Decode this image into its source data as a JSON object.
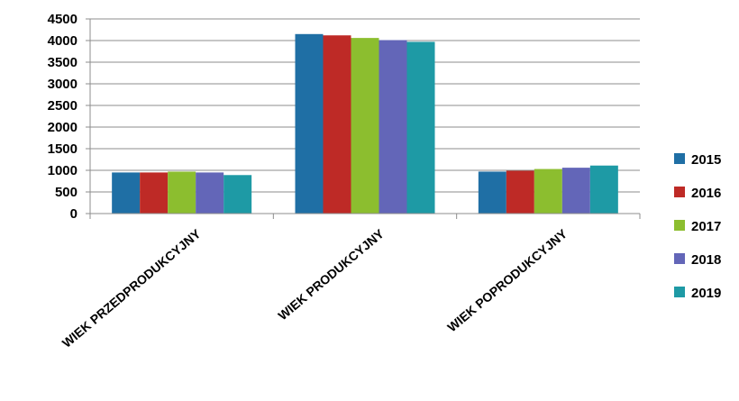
{
  "chart_data": {
    "type": "bar",
    "title": "",
    "xlabel": "",
    "ylabel": "",
    "categories": [
      "WIEK PRZEDPRODUKCYJNY",
      "WIEK PRODUKCYJNY",
      "WIEK POPRODUKCYJNY"
    ],
    "series": [
      {
        "name": "2015",
        "color": "#1f6fa5",
        "values": [
          950,
          4150,
          970
        ]
      },
      {
        "name": "2016",
        "color": "#be2a26",
        "values": [
          950,
          4120,
          990
        ]
      },
      {
        "name": "2017",
        "color": "#8cbe2f",
        "values": [
          970,
          4060,
          1030
        ]
      },
      {
        "name": "2018",
        "color": "#6366b8",
        "values": [
          950,
          4010,
          1060
        ]
      },
      {
        "name": "2019",
        "color": "#1e9aa5",
        "values": [
          890,
          3970,
          1110
        ]
      }
    ],
    "ylim": [
      0,
      4500
    ],
    "yticks": [
      0,
      500,
      1000,
      1500,
      2000,
      2500,
      3000,
      3500,
      4000,
      4500
    ],
    "grid": true,
    "legend_position": "right"
  }
}
